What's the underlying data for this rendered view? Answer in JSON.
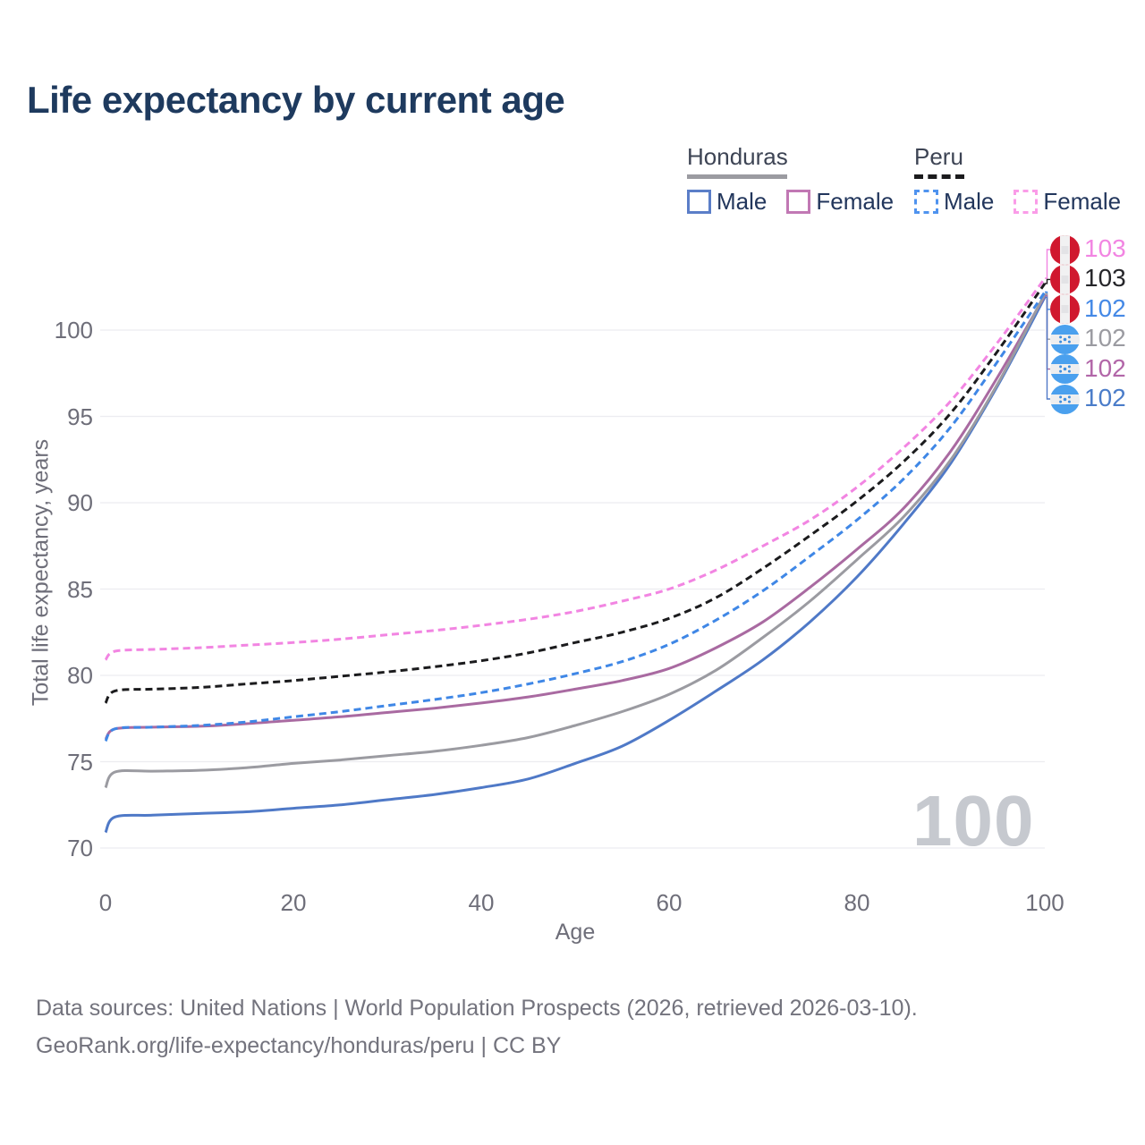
{
  "title": "Life expectancy by current age",
  "legend": {
    "groups": [
      {
        "name": "Honduras",
        "line_style": "solid",
        "line_color": "#9b9ba1",
        "items": [
          {
            "label": "Male",
            "color": "#5b7ec8",
            "box_style": "solid"
          },
          {
            "label": "Female",
            "color": "#c178b4",
            "box_style": "solid"
          }
        ]
      },
      {
        "name": "Peru",
        "line_style": "dashed",
        "line_color": "#1b1b1d",
        "items": [
          {
            "label": "Male",
            "color": "#4f93ef",
            "box_style": "dashed"
          },
          {
            "label": "Female",
            "color": "#fa9ce8",
            "box_style": "dashed"
          }
        ]
      }
    ]
  },
  "watermark": "100",
  "colors": {
    "peru_flag_red": "#d0182e",
    "honduras_flag_blue": "#4aa0ee",
    "flag_star_blue": "#3f8ede",
    "gridline": "#ececf0",
    "axis_text": "#6e6e79",
    "title_text": "#1e3a5e"
  },
  "footer": {
    "line1": "Data sources: United Nations | World Population Prospects (2026, retrieved 2026-03-10).",
    "line2": "GeoRank.org/life-expectancy/honduras/peru | CC BY"
  },
  "chart_data": {
    "type": "line",
    "title": "Life expectancy by current age",
    "xlabel": "Age",
    "ylabel": "Total life expectancy, years",
    "xlim": [
      0,
      100
    ],
    "ylim": [
      70,
      103.5
    ],
    "x_ticks": [
      0,
      20,
      40,
      60,
      80,
      100
    ],
    "y_ticks": [
      70,
      75,
      80,
      85,
      90,
      95,
      100
    ],
    "grid": "horizontal",
    "legend_position": "top-right",
    "x": [
      0,
      1,
      5,
      10,
      15,
      20,
      25,
      30,
      35,
      40,
      45,
      50,
      55,
      60,
      65,
      70,
      75,
      80,
      85,
      90,
      95,
      100
    ],
    "series": [
      {
        "id": "peru-female",
        "name": "Peru Female",
        "country": "Peru",
        "sex": "Female",
        "color": "#f285e2",
        "dash": true,
        "flag": "peru",
        "end_label": "103",
        "label_color": "#f285e2",
        "values": [
          80.9,
          81.4,
          81.5,
          81.6,
          81.75,
          81.9,
          82.1,
          82.35,
          82.6,
          82.9,
          83.25,
          83.7,
          84.3,
          85.0,
          86.1,
          87.5,
          89.0,
          90.9,
          93.2,
          95.9,
          99.3,
          103.0
        ]
      },
      {
        "id": "peru-total",
        "name": "Peru Both sexes",
        "country": "Peru",
        "sex": "Both",
        "color": "#1b1b1d",
        "dash": true,
        "flag": "peru",
        "end_label": "103",
        "label_color": "#26262a",
        "values": [
          78.4,
          79.1,
          79.2,
          79.3,
          79.5,
          79.7,
          79.95,
          80.2,
          80.5,
          80.85,
          81.3,
          81.9,
          82.5,
          83.3,
          84.5,
          86.2,
          88.1,
          90.1,
          92.4,
          95.2,
          98.8,
          102.7
        ]
      },
      {
        "id": "peru-male",
        "name": "Peru Male",
        "country": "Peru",
        "sex": "Male",
        "color": "#3f87e6",
        "dash": true,
        "flag": "peru",
        "end_label": "102",
        "label_color": "#4589e6",
        "values": [
          76.2,
          76.9,
          77.0,
          77.1,
          77.3,
          77.6,
          77.9,
          78.25,
          78.6,
          79.0,
          79.5,
          80.1,
          80.8,
          81.8,
          83.2,
          84.9,
          86.9,
          89.0,
          91.4,
          94.4,
          98.2,
          102.2
        ]
      },
      {
        "id": "honduras-total",
        "name": "Honduras Both sexes",
        "country": "Honduras",
        "sex": "Both",
        "color": "#9b9ba1",
        "dash": false,
        "flag": "honduras",
        "end_label": "102",
        "label_color": "#9b9ba1",
        "values": [
          73.5,
          74.4,
          74.45,
          74.5,
          74.65,
          74.9,
          75.1,
          75.35,
          75.6,
          75.95,
          76.4,
          77.1,
          77.9,
          78.9,
          80.3,
          82.2,
          84.3,
          86.7,
          89.2,
          92.5,
          96.9,
          102.1
        ]
      },
      {
        "id": "honduras-female",
        "name": "Honduras Female",
        "country": "Honduras",
        "sex": "Female",
        "color": "#a96aa1",
        "dash": false,
        "flag": "honduras",
        "end_label": "102",
        "label_color": "#b266a8",
        "values": [
          76.3,
          76.9,
          77.0,
          77.05,
          77.2,
          77.4,
          77.6,
          77.85,
          78.1,
          78.4,
          78.75,
          79.2,
          79.7,
          80.4,
          81.6,
          83.1,
          85.1,
          87.3,
          89.7,
          93.0,
          97.3,
          102.0
        ]
      },
      {
        "id": "honduras-male",
        "name": "Honduras Male",
        "country": "Honduras",
        "sex": "Male",
        "color": "#4f79c7",
        "dash": false,
        "flag": "honduras",
        "end_label": "102",
        "label_color": "#4a7cc9",
        "values": [
          70.9,
          71.8,
          71.9,
          72.0,
          72.1,
          72.3,
          72.5,
          72.8,
          73.1,
          73.5,
          74.0,
          74.9,
          75.9,
          77.4,
          79.1,
          80.9,
          83.1,
          85.7,
          88.8,
          92.3,
          96.8,
          101.9
        ]
      }
    ]
  }
}
